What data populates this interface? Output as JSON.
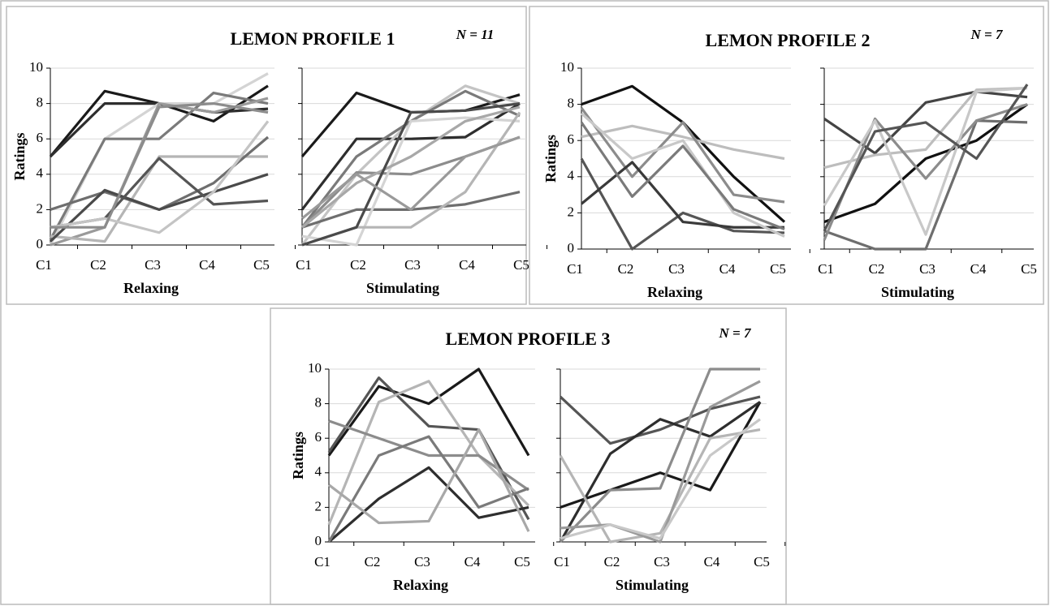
{
  "chart_data": [
    {
      "type": "line",
      "title": "LEMON PROFILE 1",
      "annotation": "N = 11",
      "ylabel": "Ratings",
      "categories": [
        "C1",
        "C2",
        "C3",
        "C4",
        "C5"
      ],
      "ylim": [
        0,
        10
      ],
      "yticks": [
        0,
        2,
        4,
        6,
        8,
        10
      ],
      "grid": true,
      "panels": [
        {
          "xlabel": "Relaxing",
          "series": [
            {
              "color": "#1a1a1a",
              "values": [
                5,
                8.7,
                8,
                7,
                9
              ]
            },
            {
              "color": "#2e2e2e",
              "values": [
                5,
                8,
                8,
                7.5,
                7.7
              ]
            },
            {
              "color": "#d4d4d4",
              "values": [
                0,
                6,
                8,
                8,
                9.7
              ]
            },
            {
              "color": "#7a7a7a",
              "values": [
                0.3,
                6,
                6,
                8.6,
                8
              ]
            },
            {
              "color": "#9a9a9a",
              "values": [
                0,
                1,
                8,
                7.5,
                8.3
              ]
            },
            {
              "color": "#b5b5b5",
              "values": [
                0.5,
                0.2,
                5,
                5,
                5
              ]
            },
            {
              "color": "#6e6e6e",
              "values": [
                2,
                3,
                2,
                3.5,
                6.1
              ]
            },
            {
              "color": "#4a4a4a",
              "values": [
                0.2,
                3.1,
                2,
                3,
                4
              ]
            },
            {
              "color": "#555555",
              "values": [
                1,
                1.5,
                4.9,
                2.3,
                2.5
              ]
            },
            {
              "color": "#c4c4c4",
              "values": [
                1,
                1.5,
                0.7,
                3,
                7
              ]
            },
            {
              "color": "#8c8c8c",
              "values": [
                1,
                1,
                7.8,
                8,
                7.5
              ]
            }
          ]
        },
        {
          "xlabel": "Stimulating",
          "series": [
            {
              "color": "#1a1a1a",
              "values": [
                5,
                8.6,
                7.5,
                7.6,
                8.5
              ]
            },
            {
              "color": "#2e2e2e",
              "values": [
                2,
                6,
                6,
                6.1,
                8
              ]
            },
            {
              "color": "#c4c4c4",
              "values": [
                0,
                4,
                7,
                9,
                8
              ]
            },
            {
              "color": "#7a7a7a",
              "values": [
                1,
                5,
                7,
                8.7,
                7.3
              ]
            },
            {
              "color": "#8c8c8c",
              "values": [
                1,
                4.1,
                4,
                5,
                6.1
              ]
            },
            {
              "color": "#6e6e6e",
              "values": [
                1,
                2,
                2,
                2.3,
                3
              ]
            },
            {
              "color": "#d4d4d4",
              "values": [
                0.5,
                0,
                7,
                7.2,
                7
              ]
            },
            {
              "color": "#b5b5b5",
              "values": [
                0,
                1,
                1,
                3,
                7.5
              ]
            },
            {
              "color": "#a8a8a8",
              "values": [
                1,
                3.5,
                5,
                7,
                7.8
              ]
            },
            {
              "color": "#4a4a4a",
              "values": [
                0,
                1,
                7.5,
                7.6,
                8
              ]
            },
            {
              "color": "#9a9a9a",
              "values": [
                1.5,
                4,
                2,
                5,
                6.1
              ]
            }
          ]
        }
      ]
    },
    {
      "type": "line",
      "title": "LEMON PROFILE 2",
      "annotation": "N = 7",
      "ylabel": "Ratings",
      "categories": [
        "C1",
        "C2",
        "C3",
        "C4",
        "C5"
      ],
      "ylim": [
        0,
        10
      ],
      "yticks": [
        0,
        2,
        4,
        6,
        8,
        10
      ],
      "grid": true,
      "panels": [
        {
          "xlabel": "Relaxing",
          "series": [
            {
              "color": "#111111",
              "values": [
                8,
                9,
                7,
                4,
                1.5
              ]
            },
            {
              "color": "#bdbdbd",
              "values": [
                6.2,
                6.8,
                6.2,
                5.5,
                5
              ]
            },
            {
              "color": "#8c8c8c",
              "values": [
                7.8,
                4,
                7,
                3,
                2.6
              ]
            },
            {
              "color": "#555555",
              "values": [
                5,
                0,
                2,
                1,
                0.9
              ]
            },
            {
              "color": "#3a3a3a",
              "values": [
                2.5,
                4.8,
                1.5,
                1.2,
                1.2
              ]
            },
            {
              "color": "#c8c8c8",
              "values": [
                7.5,
                5,
                6,
                2,
                0.7
              ]
            },
            {
              "color": "#7a7a7a",
              "values": [
                7,
                2.9,
                5.7,
                2.2,
                1.1
              ]
            }
          ]
        },
        {
          "xlabel": "Stimulating",
          "series": [
            {
              "color": "#111111",
              "values": [
                1.5,
                2.5,
                5,
                6,
                8
              ]
            },
            {
              "color": "#444444",
              "values": [
                7.2,
                5.3,
                8.1,
                8.7,
                8.4
              ]
            },
            {
              "color": "#bdbdbd",
              "values": [
                4.5,
                5.2,
                5.5,
                8.8,
                8.9
              ]
            },
            {
              "color": "#6e6e6e",
              "values": [
                1,
                0,
                0,
                7.1,
                7
              ]
            },
            {
              "color": "#8c8c8c",
              "values": [
                0.5,
                7.2,
                3.9,
                7.1,
                8
              ]
            },
            {
              "color": "#c8c8c8",
              "values": [
                2.4,
                7.1,
                0.8,
                8.7,
                8.9
              ]
            },
            {
              "color": "#555555",
              "values": [
                1,
                6.5,
                7,
                5,
                9.1
              ]
            }
          ]
        }
      ]
    },
    {
      "type": "line",
      "title": "LEMON PROFILE 3",
      "annotation": "N = 7",
      "ylabel": "Ratings",
      "categories": [
        "C1",
        "C2",
        "C3",
        "C4",
        "C5"
      ],
      "ylim": [
        0,
        10
      ],
      "yticks": [
        0,
        2,
        4,
        6,
        8,
        10
      ],
      "grid": true,
      "panels": [
        {
          "xlabel": "Relaxing",
          "series": [
            {
              "color": "#1a1a1a",
              "values": [
                5,
                9,
                8,
                10,
                5
              ]
            },
            {
              "color": "#555555",
              "values": [
                5.2,
                9.5,
                6.7,
                6.5,
                1.3
              ]
            },
            {
              "color": "#b5b5b5",
              "values": [
                1,
                8.1,
                9.3,
                5,
                2.1
              ]
            },
            {
              "color": "#8c8c8c",
              "values": [
                7,
                6,
                5,
                5,
                3
              ]
            },
            {
              "color": "#2e2e2e",
              "values": [
                0,
                2.5,
                4.3,
                1.4,
                2
              ]
            },
            {
              "color": "#7a7a7a",
              "values": [
                0,
                5,
                6.1,
                2,
                3.1
              ]
            },
            {
              "color": "#a8a8a8",
              "values": [
                3.3,
                1.1,
                1.2,
                6.5,
                0.6
              ]
            }
          ]
        },
        {
          "xlabel": "Stimulating",
          "series": [
            {
              "color": "#1a1a1a",
              "values": [
                2,
                3,
                4,
                3,
                8.1
              ]
            },
            {
              "color": "#555555",
              "values": [
                8.4,
                5.7,
                6.5,
                7.7,
                8.4
              ]
            },
            {
              "color": "#2e2e2e",
              "values": [
                0,
                5.1,
                7.1,
                6.1,
                8.1
              ]
            },
            {
              "color": "#8c8c8c",
              "values": [
                0,
                3,
                3.1,
                10,
                10
              ]
            },
            {
              "color": "#b5b5b5",
              "values": [
                5,
                0,
                0.5,
                6,
                6.5
              ]
            },
            {
              "color": "#9a9a9a",
              "values": [
                0.8,
                1,
                0,
                7.8,
                9.3
              ]
            },
            {
              "color": "#c8c8c8",
              "values": [
                0.2,
                1,
                0.2,
                5,
                7.1
              ]
            }
          ]
        }
      ]
    }
  ]
}
